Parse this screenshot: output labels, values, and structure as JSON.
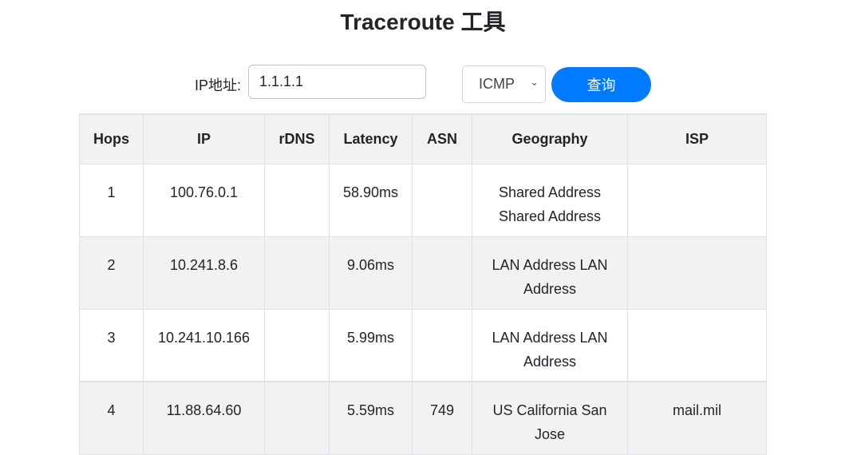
{
  "title": "Traceroute 工具",
  "form": {
    "ip_label": "IP地址:",
    "ip_value": "1.1.1.1",
    "protocol": "ICMP",
    "submit_label": "查询"
  },
  "table": {
    "headers": [
      "Hops",
      "IP",
      "rDNS",
      "Latency",
      "ASN",
      "Geography",
      "ISP"
    ],
    "rows": [
      [
        "1",
        "100.76.0.1",
        "",
        "58.90ms",
        "",
        "Shared Address Shared Address",
        ""
      ],
      [
        "2",
        "10.241.8.6",
        "",
        "9.06ms",
        "",
        "LAN Address LAN Address",
        ""
      ],
      [
        "3",
        "10.241.10.166",
        "",
        "5.99ms",
        "",
        "LAN Address LAN Address",
        ""
      ],
      [
        "4",
        "11.88.64.60",
        "",
        "5.59ms",
        "749",
        "US California San Jose",
        "mail.mil"
      ]
    ]
  },
  "colors": {
    "accent": "#007bff",
    "stripe": "#f2f2f2"
  }
}
